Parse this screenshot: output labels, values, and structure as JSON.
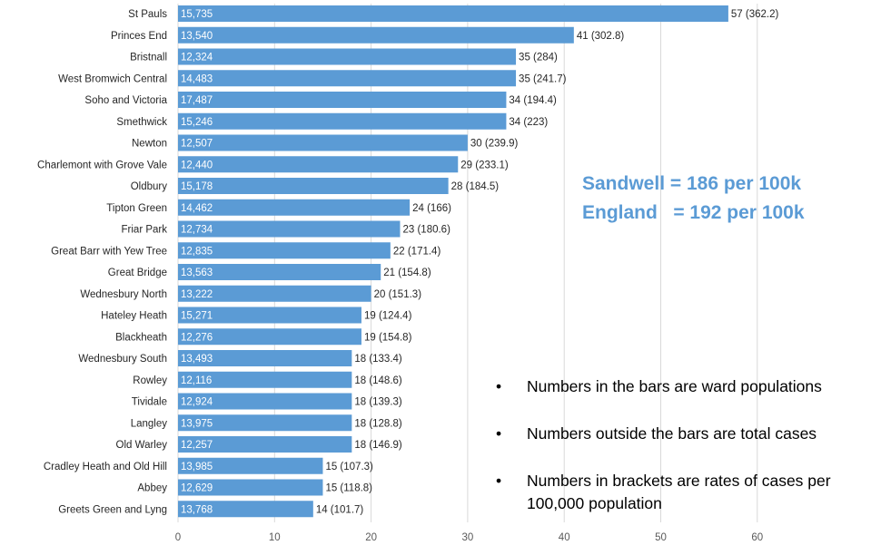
{
  "chart_data": {
    "type": "bar",
    "orientation": "horizontal",
    "title": "",
    "xlabel": "",
    "ylabel": "",
    "xlim": [
      0,
      60
    ],
    "xticks": [
      0,
      10,
      20,
      30,
      40,
      50,
      60
    ],
    "grid": true,
    "bar_color": "#5b9bd5",
    "categories": [
      "St Pauls",
      "Princes End",
      "Bristnall",
      "West Bromwich Central",
      "Soho and Victoria",
      "Smethwick",
      "Newton",
      "Charlemont with Grove Vale",
      "Oldbury",
      "Tipton Green",
      "Friar Park",
      "Great Barr with Yew Tree",
      "Great Bridge",
      "Wednesbury North",
      "Hateley Heath",
      "Blackheath",
      "Wednesbury South",
      "Rowley",
      "Tividale",
      "Langley",
      "Old Warley",
      "Cradley Heath and Old Hill",
      "Abbey",
      "Greets Green and Lyng"
    ],
    "values": [
      57,
      41,
      35,
      35,
      34,
      34,
      30,
      29,
      28,
      24,
      23,
      22,
      21,
      20,
      19,
      19,
      18,
      18,
      18,
      18,
      18,
      15,
      15,
      14
    ],
    "populations": [
      "15,735",
      "13,540",
      "12,324",
      "14,483",
      "17,487",
      "15,246",
      "12,507",
      "12,440",
      "15,178",
      "14,462",
      "12,734",
      "12,835",
      "13,563",
      "13,222",
      "15,271",
      "12,276",
      "13,493",
      "12,116",
      "12,924",
      "13,975",
      "12,257",
      "13,985",
      "12,629",
      "13,768"
    ],
    "rates": [
      "362.2",
      "302.8",
      "284",
      "241.7",
      "194.4",
      "223",
      "239.9",
      "233.1",
      "184.5",
      "166",
      "180.6",
      "171.4",
      "154.8",
      "151.3",
      "124.4",
      "154.8",
      "133.4",
      "148.6",
      "139.3",
      "128.8",
      "146.9",
      "107.3",
      "118.8",
      "101.7"
    ]
  },
  "summary": {
    "line1": "Sandwell = 186 per 100k",
    "line2": "England   = 192 per 100k",
    "color": "#5b9bd5"
  },
  "notes": [
    "Numbers in the bars are ward populations",
    "Numbers outside the bars are total cases",
    "Numbers in brackets are rates of cases per 100,000 population"
  ]
}
